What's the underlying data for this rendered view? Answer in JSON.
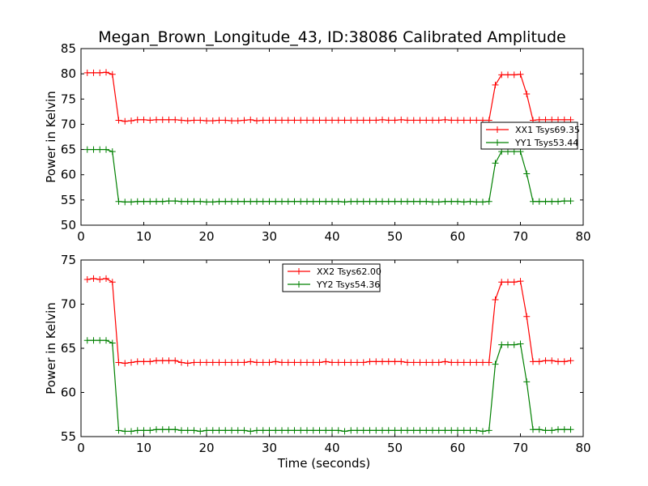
{
  "figure": {
    "title": "Megan_Brown_Longitude_43, ID:38086 Calibrated Amplitude"
  },
  "chart_data": [
    {
      "type": "line",
      "title": "Megan_Brown_Longitude_43, ID:38086 Calibrated Amplitude",
      "xlabel": "",
      "ylabel": "Power in Kelvin",
      "xlim": [
        0,
        80
      ],
      "ylim": [
        50,
        85
      ],
      "xticks": [
        "0",
        "10",
        "20",
        "30",
        "40",
        "50",
        "60",
        "70",
        "80"
      ],
      "yticks": [
        "50",
        "55",
        "60",
        "65",
        "70",
        "75",
        "80",
        "85"
      ],
      "grid": false,
      "legend_position": "center-right",
      "x": [
        1,
        2,
        3,
        4,
        5,
        6,
        7,
        8,
        9,
        10,
        11,
        12,
        13,
        14,
        15,
        16,
        17,
        18,
        19,
        20,
        21,
        22,
        23,
        24,
        25,
        26,
        27,
        28,
        29,
        30,
        31,
        32,
        33,
        34,
        35,
        36,
        37,
        38,
        39,
        40,
        41,
        42,
        43,
        44,
        45,
        46,
        47,
        48,
        49,
        50,
        51,
        52,
        53,
        54,
        55,
        56,
        57,
        58,
        59,
        60,
        61,
        62,
        63,
        64,
        65,
        66,
        67,
        68,
        69,
        70,
        71,
        72,
        73,
        74,
        75,
        76,
        77,
        78
      ],
      "series": [
        {
          "name": "XX1 Tsys69.35",
          "color": "#ff0000",
          "values": [
            80.2,
            80.2,
            80.2,
            80.3,
            79.9,
            70.8,
            70.6,
            70.7,
            70.9,
            70.9,
            70.8,
            70.9,
            70.9,
            70.9,
            70.9,
            70.8,
            70.7,
            70.8,
            70.8,
            70.7,
            70.7,
            70.8,
            70.8,
            70.7,
            70.7,
            70.8,
            70.9,
            70.7,
            70.8,
            70.8,
            70.8,
            70.8,
            70.8,
            70.8,
            70.8,
            70.8,
            70.8,
            70.8,
            70.8,
            70.8,
            70.8,
            70.8,
            70.8,
            70.8,
            70.8,
            70.8,
            70.8,
            70.9,
            70.8,
            70.8,
            70.9,
            70.8,
            70.8,
            70.8,
            70.8,
            70.8,
            70.8,
            70.9,
            70.8,
            70.8,
            70.8,
            70.8,
            70.8,
            70.8,
            70.8,
            77.8,
            79.8,
            79.8,
            79.8,
            79.9,
            76.0,
            70.8,
            70.9,
            70.9,
            70.9,
            70.9,
            70.9,
            70.9
          ]
        },
        {
          "name": "YY1 Tsys53.44",
          "color": "#008000",
          "values": [
            65.0,
            65.0,
            65.0,
            65.0,
            64.6,
            54.7,
            54.6,
            54.6,
            54.7,
            54.7,
            54.7,
            54.7,
            54.7,
            54.8,
            54.8,
            54.7,
            54.7,
            54.7,
            54.7,
            54.6,
            54.6,
            54.7,
            54.7,
            54.7,
            54.7,
            54.7,
            54.7,
            54.7,
            54.7,
            54.7,
            54.7,
            54.7,
            54.7,
            54.7,
            54.7,
            54.7,
            54.7,
            54.7,
            54.7,
            54.7,
            54.7,
            54.6,
            54.7,
            54.7,
            54.7,
            54.7,
            54.7,
            54.7,
            54.7,
            54.7,
            54.7,
            54.7,
            54.7,
            54.7,
            54.7,
            54.6,
            54.6,
            54.7,
            54.7,
            54.7,
            54.6,
            54.7,
            54.6,
            54.6,
            54.7,
            62.3,
            64.6,
            64.6,
            64.6,
            64.6,
            60.2,
            54.7,
            54.7,
            54.7,
            54.7,
            54.7,
            54.8,
            54.8
          ]
        }
      ]
    },
    {
      "type": "line",
      "title": "",
      "xlabel": "Time (seconds)",
      "ylabel": "Power in Kelvin",
      "xlim": [
        0,
        80
      ],
      "ylim": [
        55,
        75
      ],
      "xticks": [
        "0",
        "10",
        "20",
        "30",
        "40",
        "50",
        "60",
        "70",
        "80"
      ],
      "yticks": [
        "55",
        "60",
        "65",
        "70",
        "75"
      ],
      "grid": false,
      "legend_position": "upper-center",
      "x": [
        1,
        2,
        3,
        4,
        5,
        6,
        7,
        8,
        9,
        10,
        11,
        12,
        13,
        14,
        15,
        16,
        17,
        18,
        19,
        20,
        21,
        22,
        23,
        24,
        25,
        26,
        27,
        28,
        29,
        30,
        31,
        32,
        33,
        34,
        35,
        36,
        37,
        38,
        39,
        40,
        41,
        42,
        43,
        44,
        45,
        46,
        47,
        48,
        49,
        50,
        51,
        52,
        53,
        54,
        55,
        56,
        57,
        58,
        59,
        60,
        61,
        62,
        63,
        64,
        65,
        66,
        67,
        68,
        69,
        70,
        71,
        72,
        73,
        74,
        75,
        76,
        77,
        78
      ],
      "series": [
        {
          "name": "XX2 Tsys62.00",
          "color": "#ff0000",
          "values": [
            72.8,
            72.9,
            72.8,
            72.9,
            72.5,
            63.4,
            63.3,
            63.4,
            63.5,
            63.5,
            63.5,
            63.6,
            63.6,
            63.6,
            63.6,
            63.4,
            63.3,
            63.4,
            63.4,
            63.4,
            63.4,
            63.4,
            63.4,
            63.4,
            63.4,
            63.4,
            63.5,
            63.4,
            63.4,
            63.4,
            63.5,
            63.4,
            63.4,
            63.4,
            63.4,
            63.4,
            63.4,
            63.4,
            63.5,
            63.4,
            63.4,
            63.4,
            63.4,
            63.4,
            63.4,
            63.5,
            63.5,
            63.5,
            63.5,
            63.5,
            63.5,
            63.4,
            63.4,
            63.4,
            63.4,
            63.4,
            63.4,
            63.5,
            63.4,
            63.4,
            63.4,
            63.4,
            63.4,
            63.4,
            63.4,
            70.5,
            72.5,
            72.5,
            72.5,
            72.6,
            68.6,
            63.5,
            63.5,
            63.6,
            63.6,
            63.5,
            63.5,
            63.6
          ]
        },
        {
          "name": "YY2 Tsys54.36",
          "color": "#008000",
          "values": [
            65.9,
            65.9,
            65.9,
            65.9,
            65.6,
            55.7,
            55.6,
            55.6,
            55.7,
            55.7,
            55.7,
            55.8,
            55.8,
            55.8,
            55.8,
            55.7,
            55.7,
            55.7,
            55.6,
            55.7,
            55.7,
            55.7,
            55.7,
            55.7,
            55.7,
            55.7,
            55.6,
            55.7,
            55.7,
            55.7,
            55.7,
            55.7,
            55.7,
            55.7,
            55.7,
            55.7,
            55.7,
            55.7,
            55.7,
            55.7,
            55.7,
            55.6,
            55.7,
            55.7,
            55.7,
            55.7,
            55.7,
            55.7,
            55.7,
            55.7,
            55.7,
            55.7,
            55.7,
            55.7,
            55.7,
            55.7,
            55.7,
            55.7,
            55.7,
            55.7,
            55.7,
            55.7,
            55.7,
            55.6,
            55.7,
            63.2,
            65.4,
            65.4,
            65.4,
            65.5,
            61.2,
            55.8,
            55.8,
            55.7,
            55.7,
            55.8,
            55.8,
            55.8
          ]
        }
      ]
    }
  ]
}
